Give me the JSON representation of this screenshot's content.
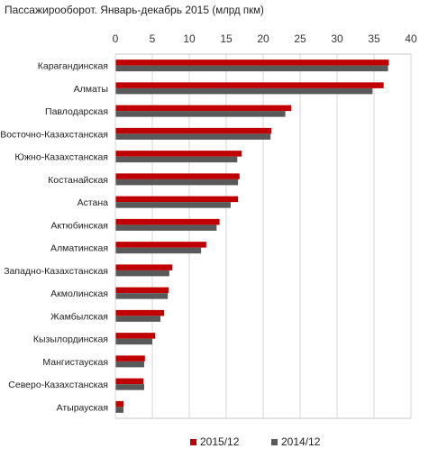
{
  "chart_data": {
    "type": "bar",
    "orientation": "horizontal",
    "title": "Пассажирооборот.  Январь-декабрь  2015",
    "title_units": "(млрд пкм)",
    "xlim": [
      0,
      40
    ],
    "x_ticks": [
      "0",
      "5",
      "10",
      "15",
      "20",
      "25",
      "30",
      "35",
      "40"
    ],
    "x_tick_values": [
      0,
      5,
      10,
      15,
      20,
      25,
      30,
      35,
      40
    ],
    "grid": true,
    "legend_position": "bottom",
    "categories": [
      "Карагандинская",
      "Алматы",
      "Павлодарская",
      "Восточно-Казахстанская",
      "Южно-Казахстанская",
      "Костанайская",
      "Астана",
      "Актюбинская",
      "Алматинская",
      "Западно-Казахстанская",
      "Акмолинская",
      "Жамбылская",
      "Кызылординская",
      "Мангистауская",
      "Северо-Казахстанская",
      "Атырауская"
    ],
    "series": [
      {
        "name": "2015/12",
        "color": "#C00000",
        "values": [
          37.0,
          36.3,
          23.8,
          21.1,
          17.1,
          16.8,
          16.6,
          14.1,
          12.3,
          7.7,
          7.2,
          6.6,
          5.4,
          4.0,
          3.8,
          1.1
        ]
      },
      {
        "name": "2014/12",
        "color": "#595959",
        "values": [
          36.9,
          34.8,
          23.0,
          21.0,
          16.5,
          16.6,
          15.6,
          13.7,
          11.6,
          7.3,
          7.1,
          6.1,
          5.0,
          3.9,
          3.9,
          1.1
        ]
      }
    ]
  }
}
